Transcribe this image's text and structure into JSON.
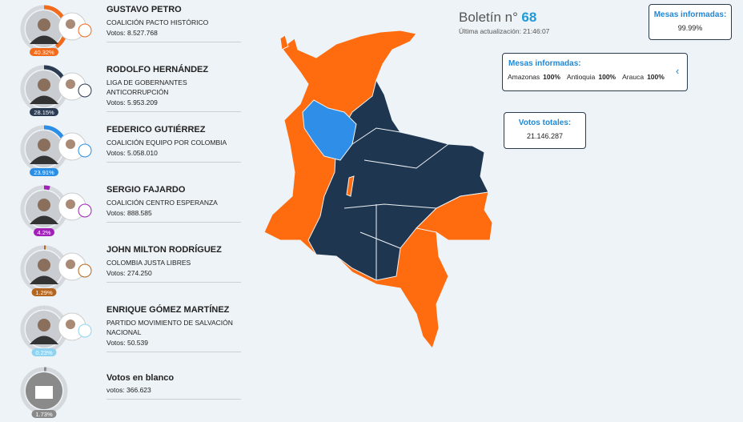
{
  "header": {
    "bulletin_label": "Boletín n°",
    "bulletin_number": "68",
    "updated": "Última actualización: 21:46:07"
  },
  "candidates": [
    {
      "name": "GUSTAVO PETRO",
      "party": "COALICIÓN PACTO HISTÓRICO",
      "votes": "Votos: 8.527.768",
      "percent": 40.32,
      "percent_label": "40.32%",
      "color": "#f26a1b"
    },
    {
      "name": "RODOLFO HERNÁNDEZ",
      "party": "LIGA DE GOBERNANTES ANTICORRUPCIÓN",
      "votes": "Votos: 5.953.209",
      "percent": 28.15,
      "percent_label": "28.15%",
      "color": "#2b3b52"
    },
    {
      "name": "FEDERICO GUTIÉRREZ",
      "party": "COALICIÓN EQUIPO POR COLOMBIA",
      "votes": "Votos: 5.058.010",
      "percent": 23.91,
      "percent_label": "23.91%",
      "color": "#2a8ee6"
    },
    {
      "name": "SERGIO FAJARDO",
      "party": "COALICIÓN CENTRO ESPERANZA",
      "votes": "Votos: 888.585",
      "percent": 4.2,
      "percent_label": "4.2%",
      "color": "#a020b8"
    },
    {
      "name": "JOHN MILTON RODRÍGUEZ",
      "party": "COLOMBIA JUSTA LIBRES",
      "votes": "Votos: 274.250",
      "percent": 1.29,
      "percent_label": "1.29%",
      "color": "#b5651d"
    },
    {
      "name": "ENRIQUE GÓMEZ MARTÍNEZ",
      "party": "PARTIDO MOVIMIENTO DE SALVACIÓN NACIONAL",
      "votes": "Votos: 50.539",
      "percent": 0.23,
      "percent_label": "0.23%",
      "color": "#8fd3f0"
    },
    {
      "name": "Votos en blanco",
      "party": "",
      "votes": "votos: 366.623",
      "percent": 1.73,
      "percent_label": "1.73%",
      "color": "#8a8a8a"
    }
  ],
  "mesas_total": {
    "title": "Mesas informadas:",
    "value": "99.99%"
  },
  "mesas_depto": {
    "title": "Mesas informadas:",
    "items": [
      {
        "name": "Amazonas",
        "value": "100%"
      },
      {
        "name": "Antioquia",
        "value": "100%"
      },
      {
        "name": "Arauca",
        "value": "100%"
      }
    ]
  },
  "votos_totales": {
    "title": "Votos totales:",
    "value": "21.146.287"
  }
}
